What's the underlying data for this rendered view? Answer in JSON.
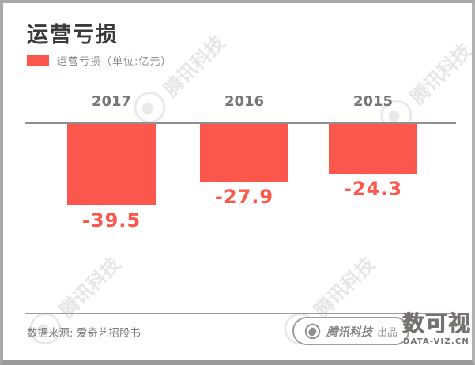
{
  "header": {
    "title": "运营亏损",
    "legend_label": "运营亏损（单位:亿元）"
  },
  "chart_data": {
    "type": "bar",
    "title": "运营亏损",
    "legend": "运营亏损（单位:亿元）",
    "unit": "亿元",
    "categories": [
      "2017",
      "2016",
      "2015"
    ],
    "values": [
      -39.5,
      -27.9,
      -24.3
    ],
    "bar_color": "#fc574c",
    "baseline": 0,
    "ylim": [
      -45,
      0
    ],
    "grid": false,
    "legend_position": "top-left",
    "value_labels": [
      "-39.5",
      "-27.9",
      "-24.3"
    ]
  },
  "watermark": {
    "text": "腾讯科技"
  },
  "footer": {
    "source": "数据来源: 爱奇艺招股书",
    "badge": {
      "brand": "腾讯科技",
      "suffix": "出品"
    },
    "logo": {
      "text": "数可视",
      "subtext": "DATA-VIZ.CN"
    }
  },
  "colors": {
    "accent": "#fc574c",
    "title_text": "#3a3a3a",
    "axis_line": "#909090",
    "muted_text": "#8a8a8a",
    "watermark": "#e2e2e2"
  }
}
